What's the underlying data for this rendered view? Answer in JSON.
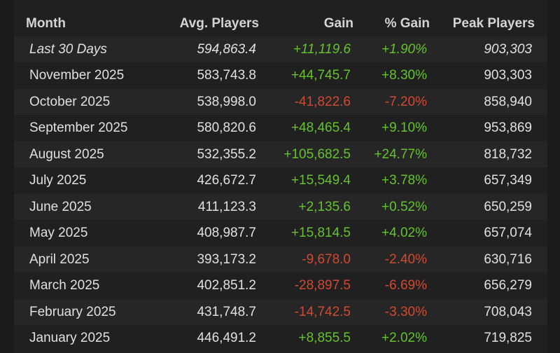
{
  "colors": {
    "positive": "#66c22c",
    "negative": "#d04a33",
    "text": "#e0e0e0",
    "background": "#1b1b1b"
  },
  "headers": {
    "month": "Month",
    "avg": "Avg. Players",
    "gain": "Gain",
    "pct": "% Gain",
    "peak": "Peak Players"
  },
  "rows": [
    {
      "month": "Last 30 Days",
      "avg": "594,863.4",
      "gain": "+11,119.6",
      "pct": "+1.90%",
      "peak": "903,303"
    },
    {
      "month": "November 2025",
      "avg": "583,743.8",
      "gain": "+44,745.7",
      "pct": "+8.30%",
      "peak": "903,303"
    },
    {
      "month": "October 2025",
      "avg": "538,998.0",
      "gain": "-41,822.6",
      "pct": "-7.20%",
      "peak": "858,940"
    },
    {
      "month": "September 2025",
      "avg": "580,820.6",
      "gain": "+48,465.4",
      "pct": "+9.10%",
      "peak": "953,869"
    },
    {
      "month": "August 2025",
      "avg": "532,355.2",
      "gain": "+105,682.5",
      "pct": "+24.77%",
      "peak": "818,732"
    },
    {
      "month": "July 2025",
      "avg": "426,672.7",
      "gain": "+15,549.4",
      "pct": "+3.78%",
      "peak": "657,349"
    },
    {
      "month": "June 2025",
      "avg": "411,123.3",
      "gain": "+2,135.6",
      "pct": "+0.52%",
      "peak": "650,259"
    },
    {
      "month": "May 2025",
      "avg": "408,987.7",
      "gain": "+15,814.5",
      "pct": "+4.02%",
      "peak": "657,074"
    },
    {
      "month": "April 2025",
      "avg": "393,173.2",
      "gain": "-9,678.0",
      "pct": "-2.40%",
      "peak": "630,716"
    },
    {
      "month": "March 2025",
      "avg": "402,851.2",
      "gain": "-28,897.5",
      "pct": "-6.69%",
      "peak": "656,279"
    },
    {
      "month": "February 2025",
      "avg": "431,748.7",
      "gain": "-14,742.5",
      "pct": "-3.30%",
      "peak": "708,043"
    },
    {
      "month": "January 2025",
      "avg": "446,491.2",
      "gain": "+8,855.5",
      "pct": "+2.02%",
      "peak": "719,825"
    }
  ]
}
